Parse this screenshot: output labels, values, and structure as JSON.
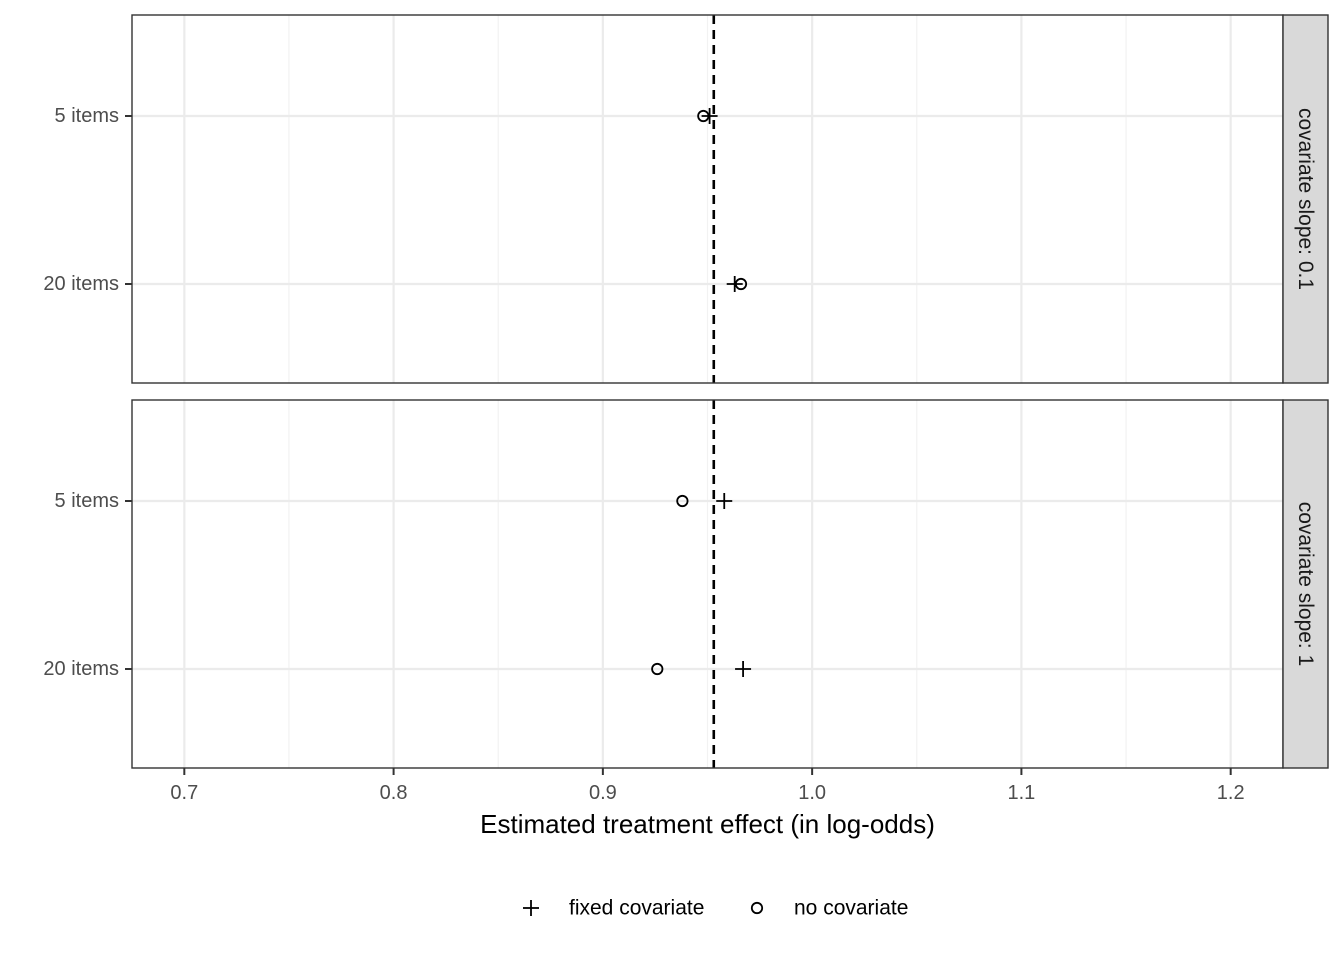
{
  "chart_data": {
    "type": "scatter",
    "xlabel": "Estimated treatment effect (in log-odds)",
    "xlim": [
      0.675,
      1.225
    ],
    "x_ticks": [
      0.7,
      0.8,
      0.9,
      1.0,
      1.1,
      1.2
    ],
    "x_tick_labels": [
      "0.7",
      "0.8",
      "0.9",
      "1.0",
      "1.1",
      "1.2"
    ],
    "categories": [
      "5 items",
      "20 items"
    ],
    "reference_line": {
      "x": 0.953,
      "style": "dashed"
    },
    "grid": true,
    "legend": {
      "position": "bottom",
      "items": [
        {
          "name": "fixed covariate",
          "shape": "plus"
        },
        {
          "name": "no covariate",
          "shape": "circle"
        }
      ]
    },
    "panels": [
      {
        "strip": "covariate slope: 0.1",
        "series": [
          {
            "name": "fixed covariate",
            "shape": "plus",
            "points": [
              {
                "y": "5 items",
                "x": 0.951
              },
              {
                "y": "20 items",
                "x": 0.963
              }
            ]
          },
          {
            "name": "no covariate",
            "shape": "circle",
            "points": [
              {
                "y": "5 items",
                "x": 0.948
              },
              {
                "y": "20 items",
                "x": 0.966
              }
            ]
          }
        ]
      },
      {
        "strip": "covariate slope: 1",
        "series": [
          {
            "name": "fixed covariate",
            "shape": "plus",
            "points": [
              {
                "y": "5 items",
                "x": 0.958
              },
              {
                "y": "20 items",
                "x": 0.967
              }
            ]
          },
          {
            "name": "no covariate",
            "shape": "circle",
            "points": [
              {
                "y": "5 items",
                "x": 0.938
              },
              {
                "y": "20 items",
                "x": 0.926
              }
            ]
          }
        ]
      }
    ]
  }
}
